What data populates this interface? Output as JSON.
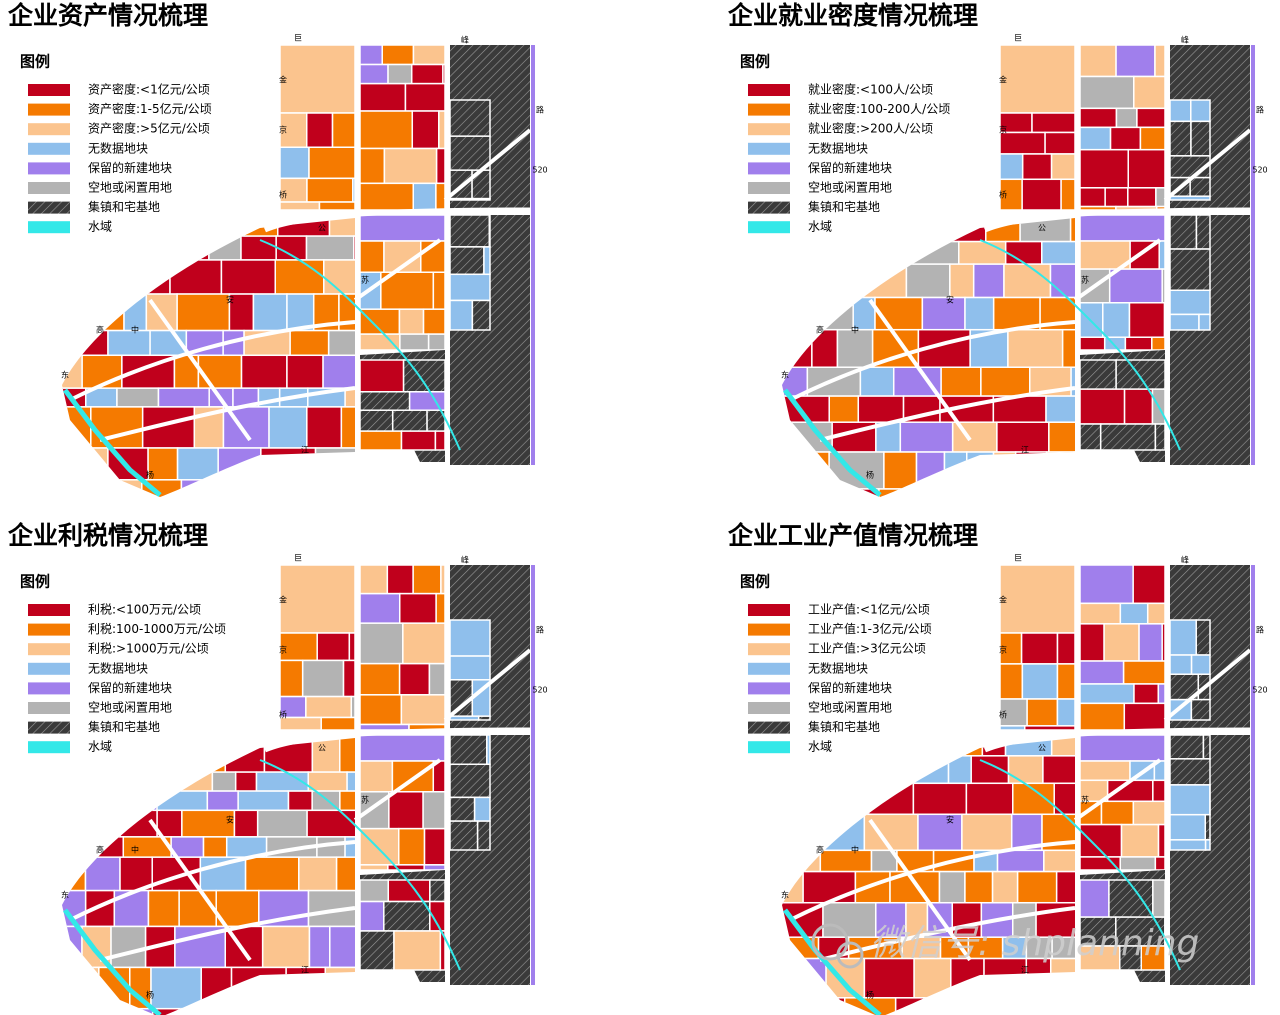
{
  "panels": [
    {
      "title": "企业资产情况梳理",
      "legend_title": "图例",
      "legend": [
        {
          "label": "资产密度:<1亿元/公顷",
          "color": "#c0001c"
        },
        {
          "label": "资产密度:1-5亿元/公顷",
          "color": "#f57a00"
        },
        {
          "label": "资产密度:>5亿元/公顷",
          "color": "#fbc48e"
        },
        {
          "label": "无数据地块",
          "color": "#8fbfec"
        },
        {
          "label": "保留的新建地块",
          "color": "#a07fec"
        },
        {
          "label": "空地或闲置用地",
          "color": "#b3b3b3"
        },
        {
          "label": "集镇和宅基地",
          "color": "#3a3a3a",
          "hatched": true
        },
        {
          "label": "水域",
          "color": "#33e8e8"
        }
      ]
    },
    {
      "title": "企业就业密度情况梳理",
      "legend_title": "图例",
      "legend": [
        {
          "label": "就业密度:<100人/公顷",
          "color": "#c0001c"
        },
        {
          "label": "就业密度:100-200人/公顷",
          "color": "#f57a00"
        },
        {
          "label": "就业密度:>200人/公顷",
          "color": "#fbc48e"
        },
        {
          "label": "无数据地块",
          "color": "#8fbfec"
        },
        {
          "label": "保留的新建地块",
          "color": "#a07fec"
        },
        {
          "label": "空地或闲置用地",
          "color": "#b3b3b3"
        },
        {
          "label": "集镇和宅基地",
          "color": "#3a3a3a",
          "hatched": true
        },
        {
          "label": "水域",
          "color": "#33e8e8"
        }
      ]
    },
    {
      "title": "企业利税情况梳理",
      "legend_title": "图例",
      "legend": [
        {
          "label": "利税:<100万元/公顷",
          "color": "#c0001c"
        },
        {
          "label": "利税:100-1000万元/公顷",
          "color": "#f57a00"
        },
        {
          "label": "利税:>1000万元/公顷",
          "color": "#fbc48e"
        },
        {
          "label": "无数据地块",
          "color": "#8fbfec"
        },
        {
          "label": "保留的新建地块",
          "color": "#a07fec"
        },
        {
          "label": "空地或闲置用地",
          "color": "#b3b3b3"
        },
        {
          "label": "集镇和宅基地",
          "color": "#3a3a3a",
          "hatched": true
        },
        {
          "label": "水域",
          "color": "#33e8e8"
        }
      ]
    },
    {
      "title": "企业工业产值情况梳理",
      "legend_title": "图例",
      "legend": [
        {
          "label": "工业产值:<1亿元/公顷",
          "color": "#c0001c"
        },
        {
          "label": "工业产值:1-3亿元/公顷",
          "color": "#f57a00"
        },
        {
          "label": "工业产值:>3亿元公顷",
          "color": "#fbc48e"
        },
        {
          "label": "无数据地块",
          "color": "#8fbfec"
        },
        {
          "label": "保留的新建地块",
          "color": "#a07fec"
        },
        {
          "label": "空地或闲置用地",
          "color": "#b3b3b3"
        },
        {
          "label": "集镇和宅基地",
          "color": "#3a3a3a",
          "hatched": true
        },
        {
          "label": "水域",
          "color": "#33e8e8"
        }
      ]
    }
  ],
  "road_labels": [
    "巨",
    "峰",
    "金",
    "京",
    "桥",
    "路",
    "520",
    "公",
    "江",
    "东",
    "杨",
    "高",
    "中",
    "安",
    "苏"
  ],
  "watermark": "微信号: shplanning"
}
